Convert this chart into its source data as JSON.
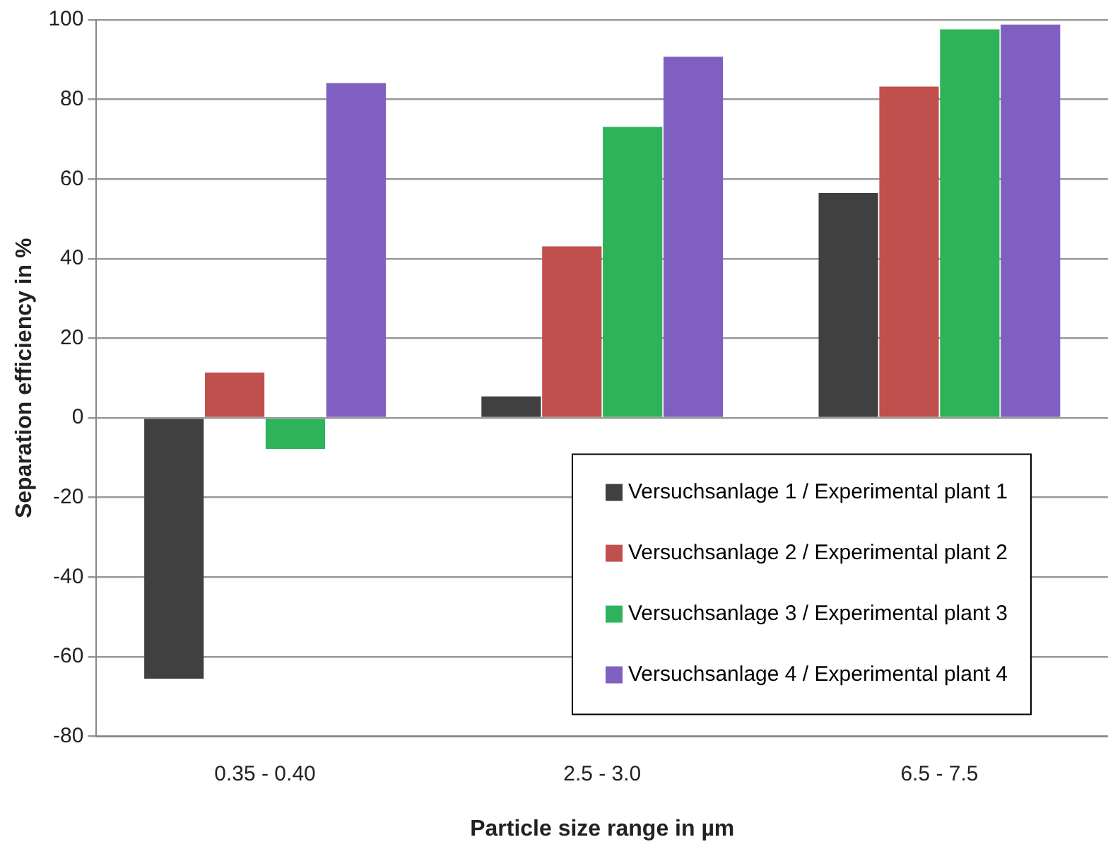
{
  "chart_data": {
    "type": "bar",
    "xlabel": "Particle size range in µm",
    "ylabel": "Separation efficiency in %",
    "categories": [
      "0.35 - 0.40",
      "2.5 - 3.0",
      "6.5 - 7.5"
    ],
    "series": [
      {
        "name": "Versuchsanlage 1 / Experimental plant 1",
        "color": "#404040",
        "values": [
          -65.5,
          5.4,
          56.5
        ]
      },
      {
        "name": "Versuchsanlage 2 / Experimental plant 2",
        "color": "#c0504d",
        "values": [
          11.4,
          43.1,
          83.2
        ]
      },
      {
        "name": "Versuchsanlage 3 / Experimental plant 3",
        "color": "#2eb35a",
        "values": [
          -7.8,
          73.1,
          97.6
        ]
      },
      {
        "name": "Versuchsanlage 4 / Experimental plant 4",
        "color": "#7f5fbf",
        "values": [
          84.1,
          90.7,
          98.8
        ]
      }
    ],
    "ylim": [
      -80,
      100
    ],
    "yticks": [
      -80,
      -60,
      -40,
      -20,
      0,
      20,
      40,
      60,
      80,
      100
    ],
    "grid": "y",
    "legend": "bottom right"
  }
}
